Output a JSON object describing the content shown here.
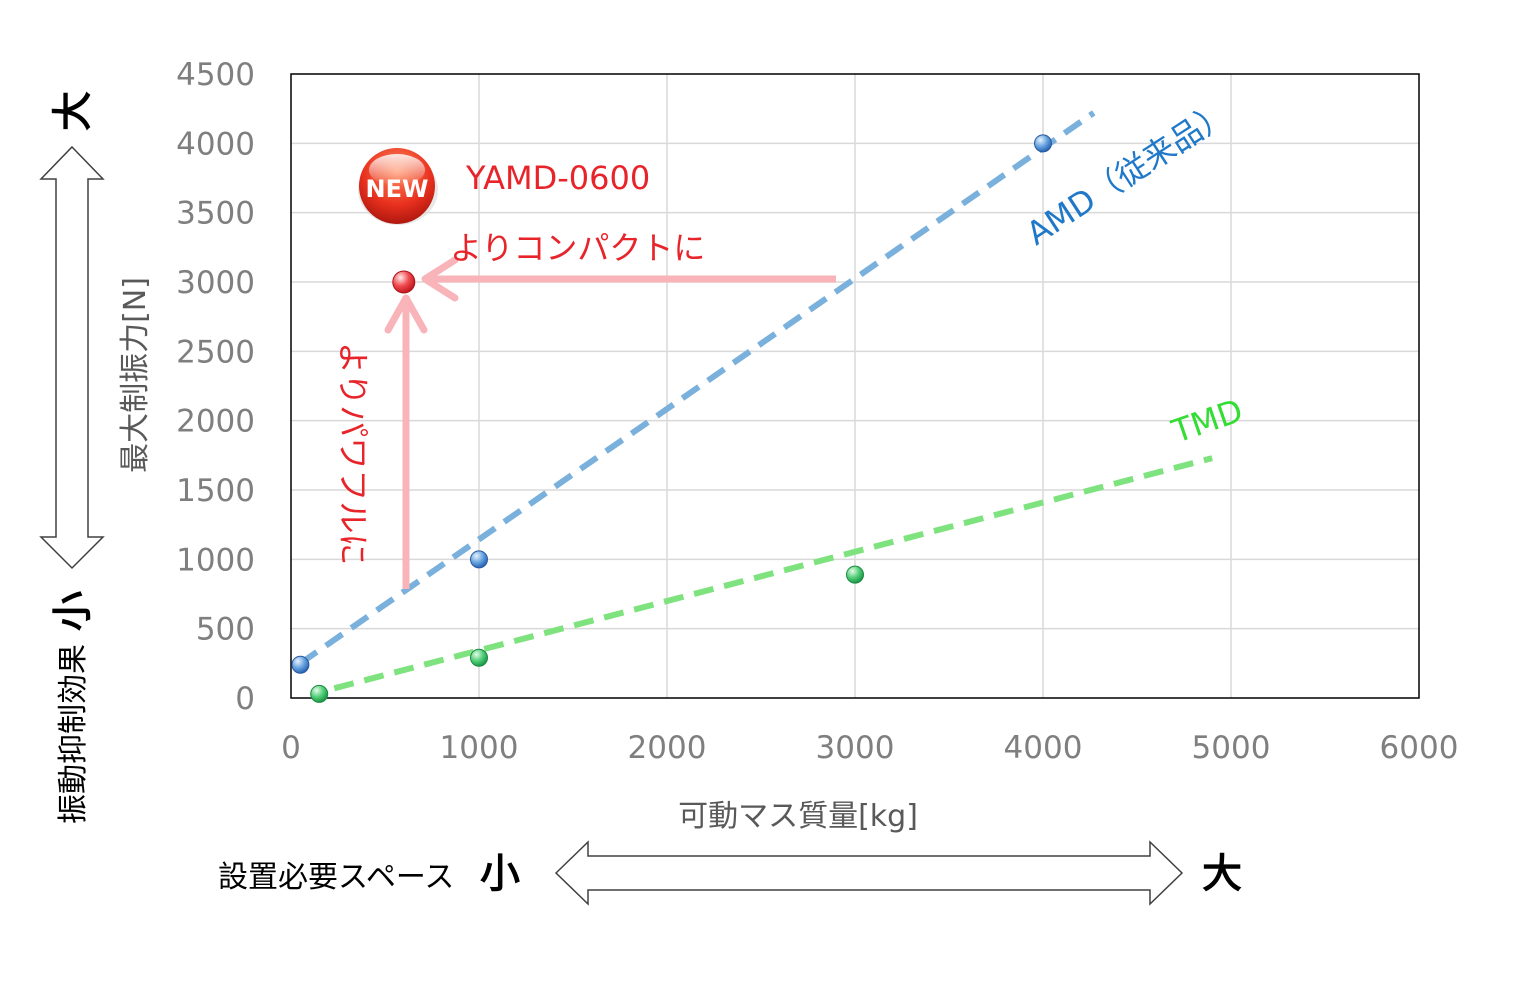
{
  "chart_data": {
    "type": "scatter",
    "xlabel": "可動マス質量[kg]",
    "ylabel": "最大制振力[N]",
    "xlim": [
      0,
      6000
    ],
    "ylim": [
      0,
      4500
    ],
    "x_ticks": [
      "0",
      "1000",
      "2000",
      "3000",
      "4000",
      "5000",
      "6000"
    ],
    "y_ticks": [
      "0",
      "500",
      "1000",
      "1500",
      "2000",
      "2500",
      "3000",
      "3500",
      "4000",
      "4500"
    ],
    "grid": true,
    "series": [
      {
        "name": "AMD（従来品）",
        "color": "#5b9bd5",
        "points": [
          {
            "x": 50,
            "y": 240
          },
          {
            "x": 1000,
            "y": 1000
          },
          {
            "x": 4000,
            "y": 4000
          }
        ],
        "trendline": {
          "from": {
            "x": 50,
            "y": 250
          },
          "to": {
            "x": 4270,
            "y": 4220
          },
          "color": "#7ab0dc"
        }
      },
      {
        "name": "TMD",
        "color": "#3cb371",
        "points": [
          {
            "x": 150,
            "y": 30
          },
          {
            "x": 1000,
            "y": 290
          },
          {
            "x": 3000,
            "y": 890
          }
        ],
        "trendline": {
          "from": {
            "x": 230,
            "y": 70
          },
          "to": {
            "x": 4900,
            "y": 1730
          },
          "color": "#7ee37e"
        }
      },
      {
        "name": "YAMD-0600",
        "color": "#e8242b",
        "points": [
          {
            "x": 600,
            "y": 3000
          }
        ]
      }
    ]
  },
  "annotations": {
    "new_badge": "NEW",
    "product_name": "YAMD-0600",
    "compact_text": "よりコンパクトに",
    "powerful_text": "よりパワフルに",
    "amd_label": "AMD（従来品）",
    "tmd_label": "TMD"
  },
  "side_axis": {
    "vertical_caption": "振動抑制効果",
    "vertical_large": "大",
    "vertical_small": "小",
    "horizontal_caption": "設置必要スペース",
    "horizontal_small": "小",
    "horizontal_large": "大"
  },
  "colors": {
    "red": "#e8242b",
    "arrow_pink": "#f8b4b8",
    "amd_text": "#1f78c8",
    "tmd_text": "#33dd33",
    "grid": "#d9d9d9"
  }
}
